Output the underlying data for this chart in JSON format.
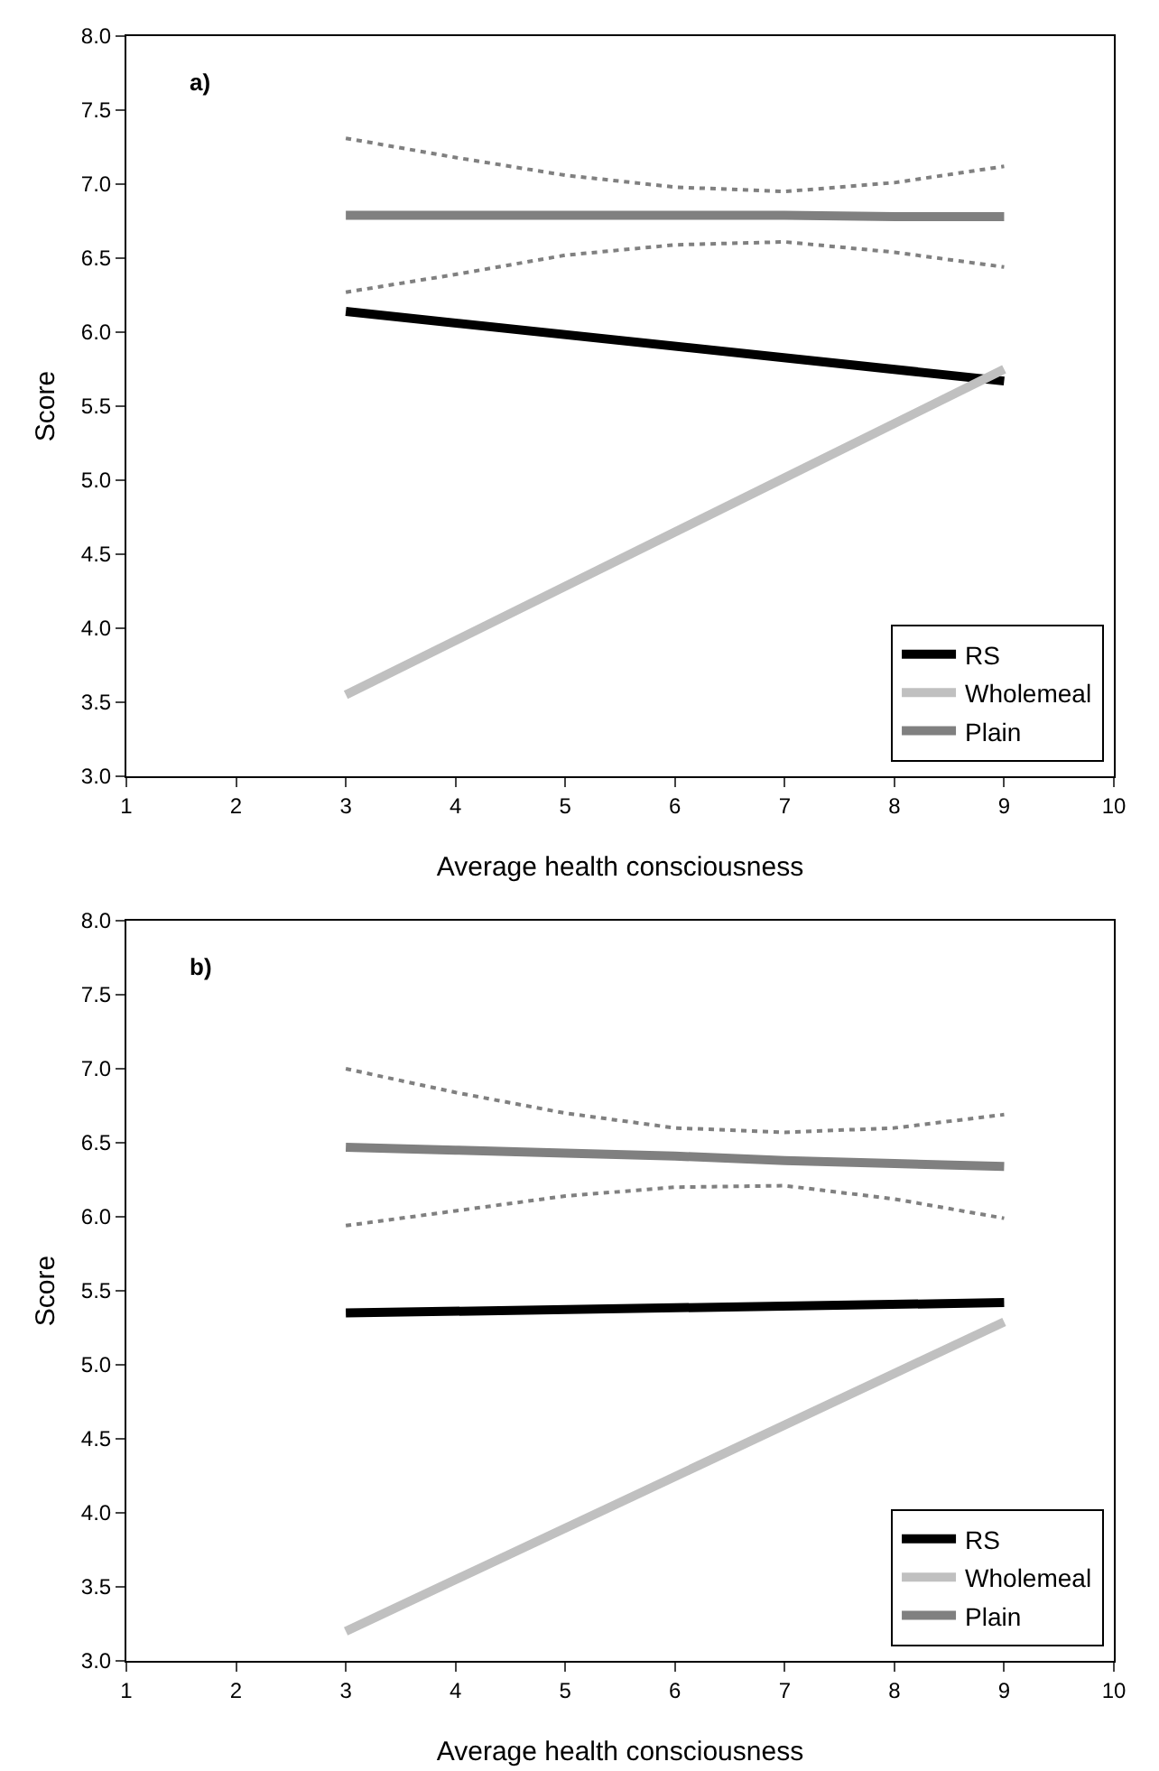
{
  "chart_data": [
    {
      "type": "line",
      "annotations": [
        "a)"
      ],
      "xlabel": "Average health consciousness",
      "ylabel": "Score",
      "xlim": [
        1,
        10
      ],
      "xticks": [
        1,
        2,
        3,
        4,
        5,
        6,
        7,
        8,
        9,
        10
      ],
      "ylim": [
        3,
        8
      ],
      "yticks": [
        {
          "value": 3,
          "label": "3.0"
        },
        {
          "value": 3.5,
          "label": "3.5"
        },
        {
          "value": 4,
          "label": "4.0"
        },
        {
          "value": 4.5,
          "label": "4.5"
        },
        {
          "value": 5,
          "label": "5.0"
        },
        {
          "value": 5.5,
          "label": "5.5"
        },
        {
          "value": 6,
          "label": "6.0"
        },
        {
          "value": 6.5,
          "label": "6.5"
        },
        {
          "value": 7,
          "label": "7.0"
        },
        {
          "value": 7.5,
          "label": "7.5"
        },
        {
          "value": 8,
          "label": "8.0"
        }
      ],
      "grid": false,
      "legend": "bottom right",
      "marker": "none",
      "line_style": "solid",
      "series": [
        {
          "name": "RS",
          "color": "#000000",
          "x": [
            3,
            9
          ],
          "values": [
            6.14,
            5.67
          ]
        },
        {
          "name": "Wholemeal",
          "color": "#c0c0c0",
          "x": [
            3,
            9
          ],
          "values": [
            3.55,
            5.75
          ]
        },
        {
          "name": "Plain",
          "color": "#808080",
          "x": [
            3,
            4,
            5,
            6,
            7,
            8,
            9
          ],
          "values": [
            6.79,
            6.79,
            6.79,
            6.79,
            6.79,
            6.78,
            6.78
          ]
        },
        {
          "color": "#808080",
          "line_style": "dotted",
          "x": [
            3,
            4,
            5,
            6,
            7,
            8,
            9
          ],
          "values": [
            6.27,
            6.39,
            6.52,
            6.59,
            6.61,
            6.54,
            6.44
          ]
        },
        {
          "color": "#808080",
          "line_style": "dotted",
          "x": [
            3,
            4,
            5,
            6,
            7,
            8,
            9
          ],
          "values": [
            7.31,
            7.18,
            7.06,
            6.98,
            6.95,
            7.01,
            7.12
          ]
        }
      ]
    },
    {
      "type": "line",
      "annotations": [
        "b)"
      ],
      "xlabel": "Average health consciousness",
      "ylabel": "Score",
      "xlim": [
        1,
        10
      ],
      "xticks": [
        1,
        2,
        3,
        4,
        5,
        6,
        7,
        8,
        9,
        10
      ],
      "ylim": [
        3,
        8
      ],
      "yticks": [
        {
          "value": 3,
          "label": "3.0"
        },
        {
          "value": 3.5,
          "label": "3.5"
        },
        {
          "value": 4,
          "label": "4.0"
        },
        {
          "value": 4.5,
          "label": "4.5"
        },
        {
          "value": 5,
          "label": "5.0"
        },
        {
          "value": 5.5,
          "label": "5.5"
        },
        {
          "value": 6,
          "label": "6.0"
        },
        {
          "value": 6.5,
          "label": "6.5"
        },
        {
          "value": 7,
          "label": "7.0"
        },
        {
          "value": 7.5,
          "label": "7.5"
        },
        {
          "value": 8,
          "label": "8.0"
        }
      ],
      "grid": false,
      "legend": "bottom right",
      "marker": "none",
      "line_style": "solid",
      "series": [
        {
          "name": "RS",
          "color": "#000000",
          "x": [
            3,
            9
          ],
          "values": [
            5.35,
            5.42
          ]
        },
        {
          "name": "Wholemeal",
          "color": "#c0c0c0",
          "x": [
            3,
            9
          ],
          "values": [
            3.2,
            5.29
          ]
        },
        {
          "name": "Plain",
          "color": "#808080",
          "x": [
            3,
            4,
            5,
            6,
            7,
            8,
            9
          ],
          "values": [
            6.47,
            6.45,
            6.43,
            6.41,
            6.38,
            6.36,
            6.34
          ]
        },
        {
          "color": "#808080",
          "line_style": "dotted",
          "x": [
            3,
            4,
            5,
            6,
            7,
            8,
            9
          ],
          "values": [
            5.94,
            6.04,
            6.14,
            6.2,
            6.21,
            6.12,
            5.99
          ]
        },
        {
          "color": "#808080",
          "line_style": "dotted",
          "x": [
            3,
            4,
            5,
            6,
            7,
            8,
            9
          ],
          "values": [
            7.0,
            6.84,
            6.7,
            6.6,
            6.57,
            6.6,
            6.69
          ]
        }
      ]
    }
  ]
}
